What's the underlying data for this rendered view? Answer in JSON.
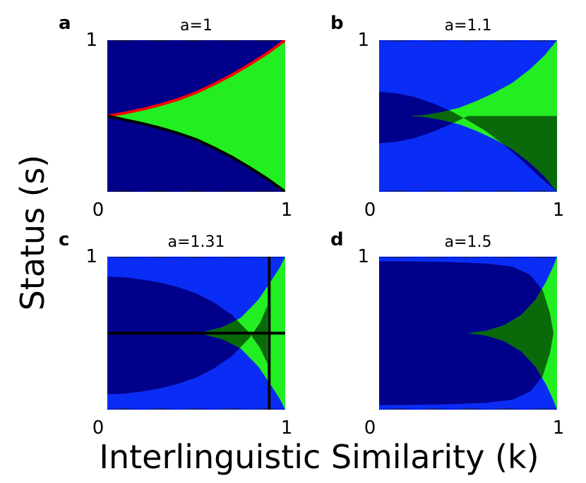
{
  "figure": {
    "xlabel": "Interlinguistic Similarity (k)",
    "ylabel": "Status (s)"
  },
  "colors": {
    "navy": "#00008b",
    "blue": "#0a2df5",
    "green": "#22ee22",
    "dark_green_overlay": "#0a6a0a",
    "red": "#ff0000",
    "black": "#000000"
  },
  "chart_data": [
    {
      "type": "heatmap",
      "letter": "a",
      "title": "a=1",
      "xlim": [
        0,
        1
      ],
      "ylim": [
        0,
        1
      ],
      "x_ticks": [
        "0",
        "1"
      ],
      "y_ticks": [
        "1"
      ],
      "background": "navy",
      "regions": [
        {
          "color": "green",
          "k": [
            0,
            0.02,
            0.1,
            0.2,
            0.3,
            0.4,
            0.5,
            0.6,
            0.7,
            0.8,
            0.9,
            1.0
          ],
          "s_upper": [
            0.5,
            0.505,
            0.52,
            0.545,
            0.575,
            0.61,
            0.655,
            0.71,
            0.77,
            0.84,
            0.915,
            1.0
          ],
          "s_lower": [
            0.5,
            0.495,
            0.475,
            0.45,
            0.42,
            0.385,
            0.345,
            0.29,
            0.23,
            0.16,
            0.085,
            0.0
          ]
        }
      ],
      "curves": [
        {
          "color": "red",
          "k": [
            0,
            0.1,
            0.2,
            0.3,
            0.4,
            0.5,
            0.6,
            0.7,
            0.8,
            0.9,
            1.0
          ],
          "s": [
            0.5,
            0.52,
            0.545,
            0.575,
            0.61,
            0.655,
            0.71,
            0.77,
            0.84,
            0.915,
            1.0
          ]
        },
        {
          "color": "black",
          "k": [
            0,
            0.1,
            0.2,
            0.3,
            0.4,
            0.5,
            0.6,
            0.7,
            0.8,
            0.9,
            1.0
          ],
          "s": [
            0.5,
            0.475,
            0.45,
            0.42,
            0.385,
            0.345,
            0.29,
            0.23,
            0.16,
            0.085,
            0.0
          ]
        }
      ],
      "lines": []
    },
    {
      "type": "heatmap",
      "letter": "b",
      "title": "a=1.1",
      "xlim": [
        0,
        1
      ],
      "ylim": [
        0,
        1
      ],
      "x_ticks": [
        "0",
        "1"
      ],
      "y_ticks": [
        "1"
      ],
      "background": "blue",
      "regions": [
        {
          "color": "navy",
          "k": [
            0,
            0.1,
            0.2,
            0.3,
            0.4,
            0.5,
            0.6,
            0.7,
            0.8,
            0.9,
            1.0
          ],
          "s_upper": [
            0.66,
            0.65,
            0.625,
            0.585,
            0.535,
            0.47,
            0.4,
            0.31,
            0.21,
            0.1,
            0.0
          ],
          "s_lower": [
            0.32,
            0.33,
            0.355,
            0.395,
            0.445,
            0.5,
            0.5,
            0.5,
            0.5,
            0.5,
            0.5
          ]
        },
        {
          "color": "green",
          "k": [
            0.18,
            0.25,
            0.35,
            0.45,
            0.55,
            0.65,
            0.75,
            0.85,
            0.93,
            1.0
          ],
          "s_upper": [
            0.5,
            0.505,
            0.525,
            0.555,
            0.6,
            0.655,
            0.72,
            0.81,
            0.9,
            1.0
          ],
          "s_lower": [
            0.5,
            0.495,
            0.475,
            0.445,
            0.4,
            0.345,
            0.28,
            0.19,
            0.1,
            0.0
          ]
        }
      ],
      "curves": [],
      "lines": []
    },
    {
      "type": "heatmap",
      "letter": "c",
      "title": "a=1.31",
      "xlim": [
        0,
        1
      ],
      "ylim": [
        0,
        1
      ],
      "x_ticks": [
        "0",
        "1"
      ],
      "y_ticks": [
        "1"
      ],
      "background": "blue",
      "regions": [
        {
          "color": "navy",
          "k": [
            0,
            0.1,
            0.2,
            0.3,
            0.4,
            0.5,
            0.6,
            0.7,
            0.8,
            0.86,
            0.9
          ],
          "s_upper": [
            0.87,
            0.865,
            0.85,
            0.83,
            0.8,
            0.76,
            0.7,
            0.62,
            0.5,
            0.4,
            0.3
          ],
          "s_lower": [
            0.1,
            0.105,
            0.12,
            0.14,
            0.17,
            0.21,
            0.27,
            0.35,
            0.47,
            0.57,
            0.68
          ]
        },
        {
          "color": "green",
          "k": [
            0.45,
            0.55,
            0.65,
            0.75,
            0.85,
            0.92,
            0.97,
            1.0
          ],
          "s_upper": [
            0.5,
            0.51,
            0.54,
            0.6,
            0.72,
            0.84,
            0.93,
            1.0
          ],
          "s_lower": [
            0.5,
            0.49,
            0.46,
            0.4,
            0.28,
            0.16,
            0.07,
            0.0
          ]
        }
      ],
      "curves": [],
      "lines": [
        {
          "color": "black",
          "orientation": "horizontal",
          "s": 0.5
        },
        {
          "color": "black",
          "orientation": "vertical",
          "k": 0.91
        }
      ]
    },
    {
      "type": "heatmap",
      "letter": "d",
      "title": "a=1.5",
      "xlim": [
        0,
        1
      ],
      "ylim": [
        0,
        1
      ],
      "x_ticks": [
        "0",
        "1"
      ],
      "y_ticks": [
        "1"
      ],
      "background": "blue",
      "regions": [
        {
          "color": "navy",
          "k": [
            0,
            0.2,
            0.4,
            0.6,
            0.75,
            0.85,
            0.92,
            0.96,
            0.98
          ],
          "s_upper": [
            0.97,
            0.968,
            0.965,
            0.955,
            0.935,
            0.88,
            0.78,
            0.63,
            0.5
          ],
          "s_lower": [
            0.03,
            0.032,
            0.035,
            0.045,
            0.065,
            0.12,
            0.22,
            0.37,
            0.5
          ]
        },
        {
          "color": "green",
          "k": [
            0.5,
            0.6,
            0.7,
            0.8,
            0.88,
            0.94,
            0.98,
            1.0
          ],
          "s_upper": [
            0.5,
            0.515,
            0.55,
            0.62,
            0.72,
            0.84,
            0.94,
            1.0
          ],
          "s_lower": [
            0.5,
            0.485,
            0.45,
            0.38,
            0.28,
            0.16,
            0.06,
            0.0
          ]
        }
      ],
      "curves": [],
      "lines": []
    }
  ]
}
